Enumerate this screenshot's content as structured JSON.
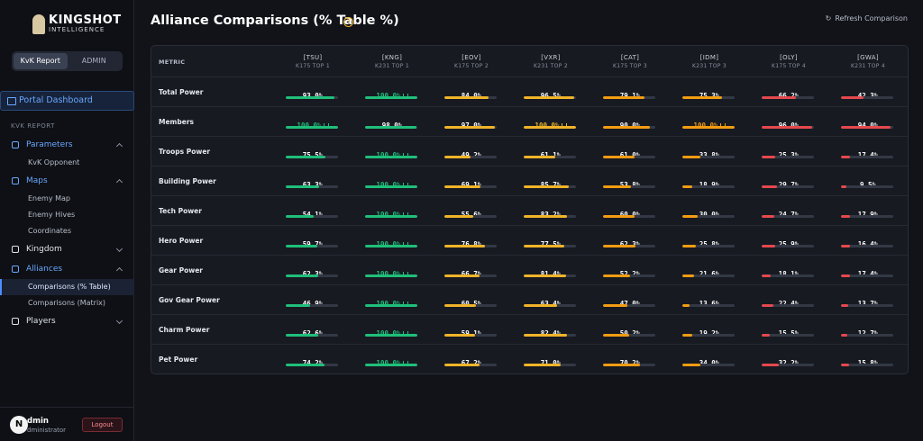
{
  "sidebar": {
    "logo_title": "KINGSHOT",
    "logo_subtitle": "INTELLIGENCE",
    "tabs": [
      "KvK Report",
      "ADMIN"
    ],
    "portal": "Portal Dashboard",
    "section": "KVK REPORT",
    "nav": [
      {
        "label": "Parameters",
        "children": [
          "KvK Opponent"
        ]
      },
      {
        "label": "Maps",
        "children": [
          "Enemy Map",
          "Enemy Hives",
          "Coordinates"
        ]
      },
      {
        "label": "Kingdom"
      },
      {
        "label": "Alliances",
        "children": [
          "Comparisons (% Table)",
          "Comparisons (Matrix)"
        ]
      },
      {
        "label": "Players"
      }
    ],
    "user": {
      "avatar": "N",
      "name": "dmin",
      "role": "dministrator",
      "logout": "Logout"
    }
  },
  "main": {
    "title": "Alliance Comparisons (% Table %)",
    "help": "?",
    "refresh": "Refresh Comparison"
  },
  "table": {
    "metric_header": "METRIC",
    "columns": [
      {
        "tag": "[TSU]",
        "sub": "K175 TOP 1",
        "color": "#1fbf7a"
      },
      {
        "tag": "[KNG]",
        "sub": "K231 TOP 1",
        "color": "#1fbf7a"
      },
      {
        "tag": "[EOV]",
        "sub": "K175 TOP 2",
        "color": "#f0b429"
      },
      {
        "tag": "[VXR]",
        "sub": "K231 TOP 2",
        "color": "#f0b429"
      },
      {
        "tag": "[CAT]",
        "sub": "K175 TOP 3",
        "color": "#f39c12"
      },
      {
        "tag": "[IDM]",
        "sub": "K231 TOP 3",
        "color": "#f39c12"
      },
      {
        "tag": "[OLY]",
        "sub": "K175 TOP 4",
        "color": "#e5484d"
      },
      {
        "tag": "[GWA]",
        "sub": "K231 TOP 4",
        "color": "#e5484d"
      }
    ],
    "rows": [
      {
        "metric": "Total Power",
        "cells": [
          {
            "value": 93.0,
            "label": "93.0%"
          },
          {
            "value": 100.0,
            "label": "100.0%"
          },
          {
            "value": 84.0,
            "label": "84.0%"
          },
          {
            "value": 96.5,
            "label": "96.5%"
          },
          {
            "value": 79.1,
            "label": "79.1%"
          },
          {
            "value": 75.3,
            "label": "75.3%"
          },
          {
            "value": 66.2,
            "label": "66.2%"
          },
          {
            "value": 42.3,
            "label": "42.3%"
          }
        ]
      },
      {
        "metric": "Members",
        "cells": [
          {
            "value": 100.0,
            "label": "100.0%"
          },
          {
            "value": 98.0,
            "label": "98.0%"
          },
          {
            "value": 97.0,
            "label": "97.0%"
          },
          {
            "value": 100.0,
            "label": "100.0%"
          },
          {
            "value": 90.0,
            "label": "90.0%"
          },
          {
            "value": 100.0,
            "label": "100.0%"
          },
          {
            "value": 96.0,
            "label": "96.0%"
          },
          {
            "value": 94.0,
            "label": "94.0%"
          }
        ]
      },
      {
        "metric": "Troops Power",
        "cells": [
          {
            "value": 75.5,
            "label": "75.5%"
          },
          {
            "value": 100.0,
            "label": "100.0%"
          },
          {
            "value": 49.2,
            "label": "49.2%"
          },
          {
            "value": 61.1,
            "label": "61.1%"
          },
          {
            "value": 61.0,
            "label": "61.0%"
          },
          {
            "value": 33.8,
            "label": "33.8%"
          },
          {
            "value": 25.3,
            "label": "25.3%"
          },
          {
            "value": 17.4,
            "label": "17.4%"
          }
        ]
      },
      {
        "metric": "Building Power",
        "cells": [
          {
            "value": 63.3,
            "label": "63.3%"
          },
          {
            "value": 100.0,
            "label": "100.0%"
          },
          {
            "value": 69.1,
            "label": "69.1%"
          },
          {
            "value": 85.7,
            "label": "85.7%"
          },
          {
            "value": 53.8,
            "label": "53.8%"
          },
          {
            "value": 18.9,
            "label": "18.9%"
          },
          {
            "value": 29.7,
            "label": "29.7%"
          },
          {
            "value": 9.5,
            "label": "9.5%"
          }
        ]
      },
      {
        "metric": "Tech Power",
        "cells": [
          {
            "value": 54.1,
            "label": "54.1%"
          },
          {
            "value": 100.0,
            "label": "100.0%"
          },
          {
            "value": 55.6,
            "label": "55.6%"
          },
          {
            "value": 83.2,
            "label": "83.2%"
          },
          {
            "value": 60.0,
            "label": "60.0%"
          },
          {
            "value": 30.0,
            "label": "30.0%"
          },
          {
            "value": 24.7,
            "label": "24.7%"
          },
          {
            "value": 17.9,
            "label": "17.9%"
          }
        ]
      },
      {
        "metric": "Hero Power",
        "cells": [
          {
            "value": 59.7,
            "label": "59.7%"
          },
          {
            "value": 100.0,
            "label": "100.0%"
          },
          {
            "value": 76.8,
            "label": "76.8%"
          },
          {
            "value": 77.5,
            "label": "77.5%"
          },
          {
            "value": 62.3,
            "label": "62.3%"
          },
          {
            "value": 25.8,
            "label": "25.8%"
          },
          {
            "value": 25.9,
            "label": "25.9%"
          },
          {
            "value": 16.4,
            "label": "16.4%"
          }
        ]
      },
      {
        "metric": "Gear Power",
        "cells": [
          {
            "value": 62.3,
            "label": "62.3%"
          },
          {
            "value": 100.0,
            "label": "100.0%"
          },
          {
            "value": 66.7,
            "label": "66.7%"
          },
          {
            "value": 81.4,
            "label": "81.4%"
          },
          {
            "value": 52.2,
            "label": "52.2%"
          },
          {
            "value": 21.6,
            "label": "21.6%"
          },
          {
            "value": 18.1,
            "label": "18.1%"
          },
          {
            "value": 17.4,
            "label": "17.4%"
          }
        ]
      },
      {
        "metric": "Gov Gear Power",
        "cells": [
          {
            "value": 46.9,
            "label": "46.9%"
          },
          {
            "value": 100.0,
            "label": "100.0%"
          },
          {
            "value": 60.5,
            "label": "60.5%"
          },
          {
            "value": 63.4,
            "label": "63.4%"
          },
          {
            "value": 47.0,
            "label": "47.0%"
          },
          {
            "value": 13.6,
            "label": "13.6%"
          },
          {
            "value": 22.4,
            "label": "22.4%"
          },
          {
            "value": 13.7,
            "label": "13.7%"
          }
        ]
      },
      {
        "metric": "Charm Power",
        "cells": [
          {
            "value": 62.6,
            "label": "62.6%"
          },
          {
            "value": 100.0,
            "label": "100.0%"
          },
          {
            "value": 59.1,
            "label": "59.1%"
          },
          {
            "value": 82.4,
            "label": "82.4%"
          },
          {
            "value": 50.2,
            "label": "50.2%"
          },
          {
            "value": 19.2,
            "label": "19.2%"
          },
          {
            "value": 15.5,
            "label": "15.5%"
          },
          {
            "value": 12.7,
            "label": "12.7%"
          }
        ]
      },
      {
        "metric": "Pet Power",
        "cells": [
          {
            "value": 74.2,
            "label": "74.2%"
          },
          {
            "value": 100.0,
            "label": "100.0%"
          },
          {
            "value": 67.2,
            "label": "67.2%"
          },
          {
            "value": 71.0,
            "label": "71.0%"
          },
          {
            "value": 70.2,
            "label": "70.2%"
          },
          {
            "value": 34.0,
            "label": "34.0%"
          },
          {
            "value": 32.2,
            "label": "32.2%"
          },
          {
            "value": 15.8,
            "label": "15.8%"
          }
        ]
      }
    ]
  }
}
